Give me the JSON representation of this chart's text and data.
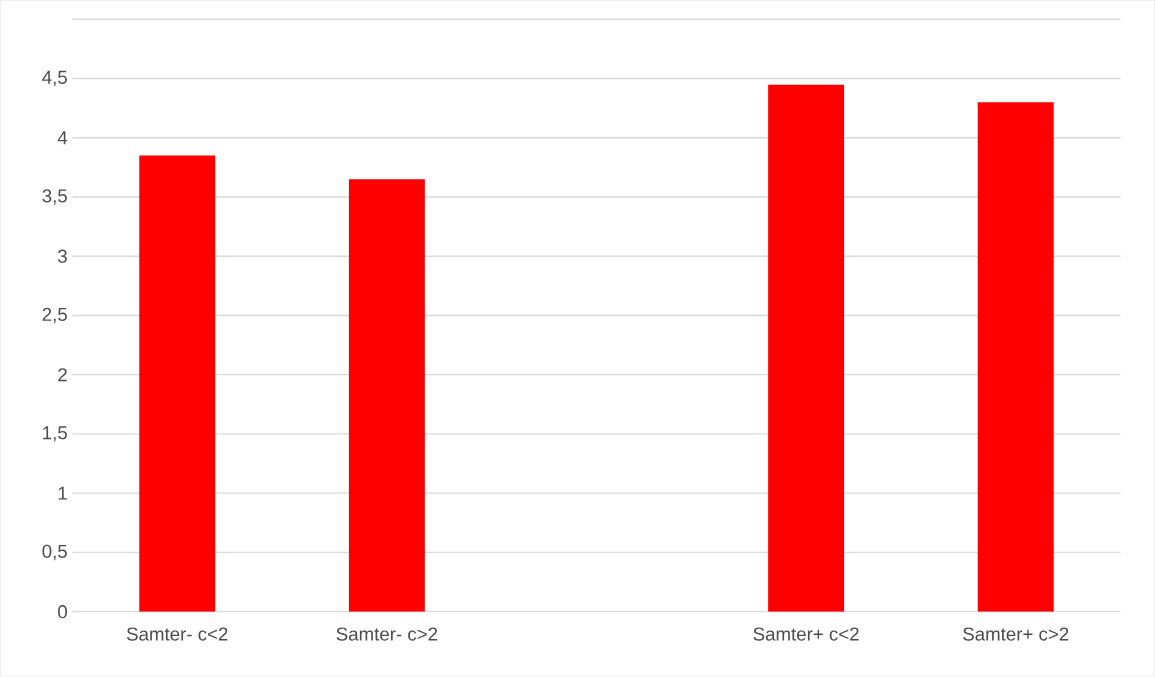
{
  "chart_data": {
    "type": "bar",
    "categories": [
      "Samter- c<2",
      "Samter- c>2",
      null,
      "Samter+ c<2",
      "Samter+ c>2"
    ],
    "values": [
      3.85,
      3.65,
      null,
      4.45,
      4.3
    ],
    "color": "#ff0000",
    "ylim": [
      0,
      5
    ],
    "yticks": [
      0,
      {
        "value": 0.5,
        "label": "0,5"
      },
      1,
      {
        "value": 1.5,
        "label": "1,5"
      },
      2,
      {
        "value": 2.5,
        "label": "2,5"
      },
      3,
      {
        "value": 3.5,
        "label": "3,5"
      },
      4,
      {
        "value": 4.5,
        "label": "4,5"
      },
      {
        "value": 5,
        "label": null
      }
    ],
    "grid": "y"
  }
}
